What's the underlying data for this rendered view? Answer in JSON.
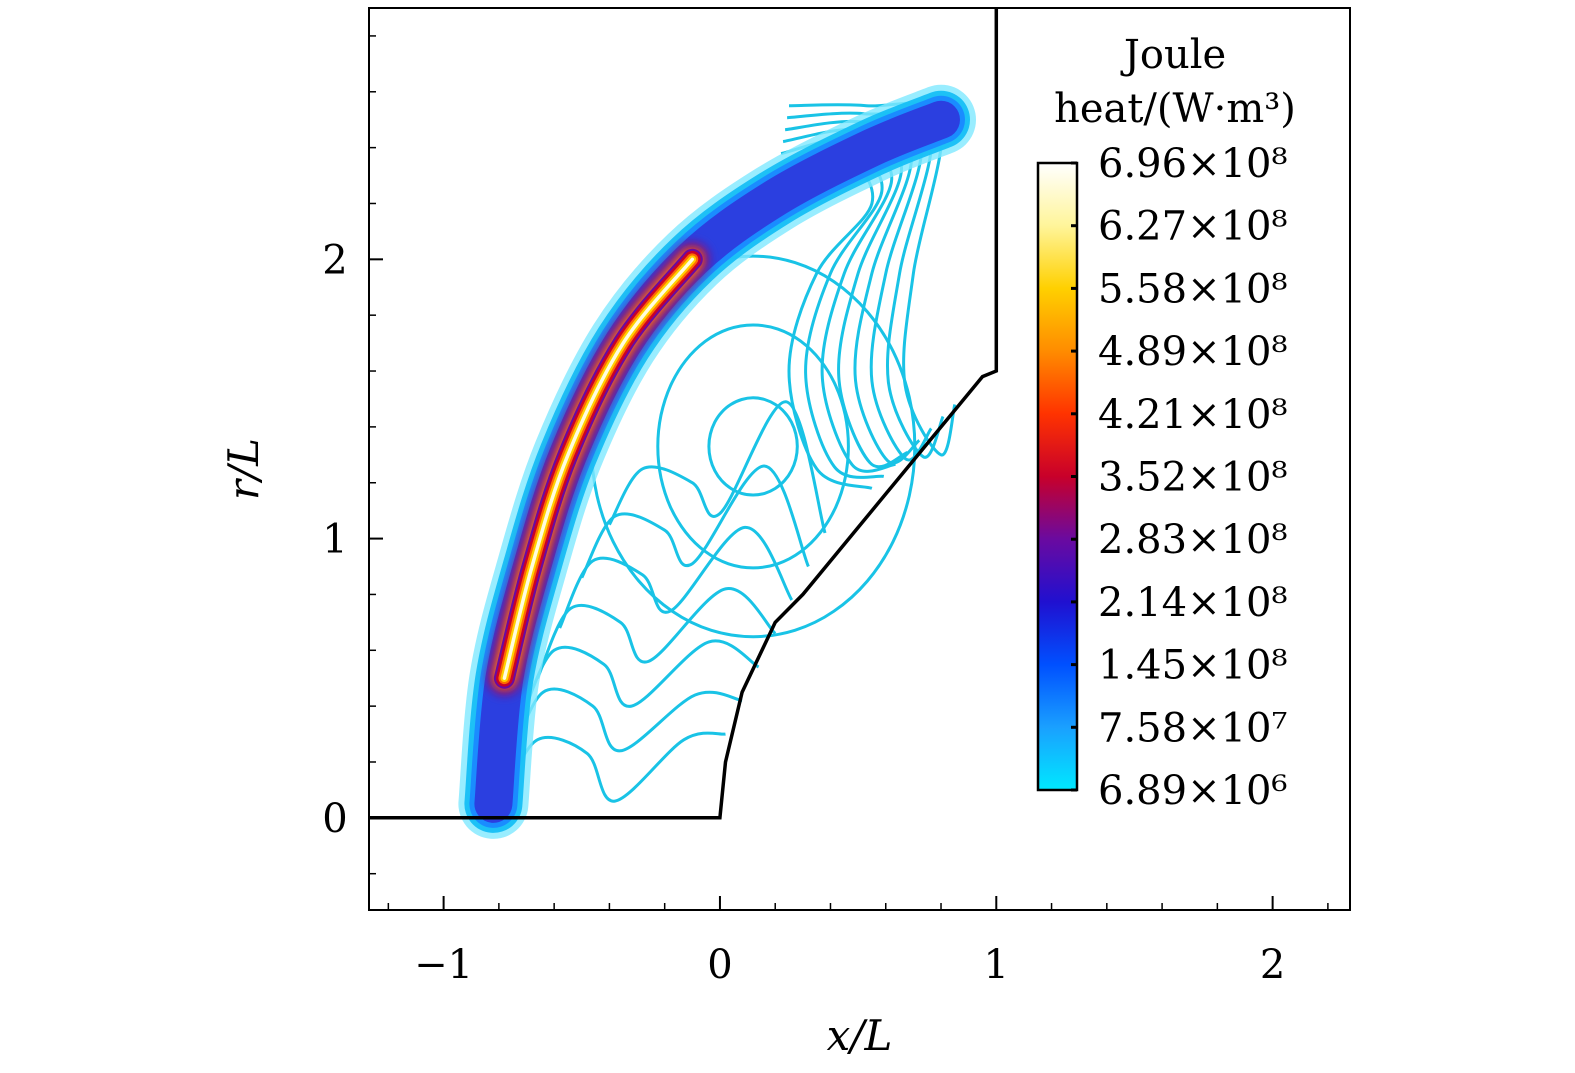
{
  "chart_data": {
    "type": "contour",
    "title": "",
    "xlabel": "x/L",
    "ylabel": "r/L",
    "xlim": [
      -1.27,
      2.28
    ],
    "ylim": [
      -0.33,
      2.9
    ],
    "x_ticks": [
      -1,
      0,
      1,
      2
    ],
    "x_tick_labels": [
      "−1",
      "0",
      "1",
      "2"
    ],
    "y_ticks": [
      0,
      1,
      2
    ],
    "y_tick_labels": [
      "0",
      "1",
      "2"
    ],
    "grid": false,
    "colorbar": {
      "title_line1": "Joule",
      "title_line2": "heat/(W·m³)",
      "placement": "right inside plot",
      "min": 6890000,
      "max": 696000000,
      "labels": [
        "6.96×10⁸",
        "6.27×10⁸",
        "5.58×10⁸",
        "4.89×10⁸",
        "4.21×10⁸",
        "3.52×10⁸",
        "2.83×10⁸",
        "2.14×10⁸",
        "1.45×10⁸",
        "7.58×10⁷",
        "6.89×10⁶"
      ],
      "colors_top_to_bottom": [
        "#ffffff",
        "#fff59a",
        "#ffd000",
        "#ff8c00",
        "#ff3300",
        "#c8002a",
        "#6a0aa0",
        "#2010d0",
        "#0050ff",
        "#1aa0ff",
        "#00e8ff"
      ]
    },
    "body_outline": [
      [
        -1.27,
        0
      ],
      [
        0,
        0
      ],
      [
        0.02,
        0.2
      ],
      [
        0.08,
        0.45
      ],
      [
        0.2,
        0.7
      ],
      [
        0.3,
        0.8
      ],
      [
        0.95,
        1.58
      ],
      [
        1.0,
        1.6
      ],
      [
        1.0,
        2.9
      ]
    ],
    "heat_band_peak": {
      "x": -0.52,
      "r": 1.3,
      "value": 696000000
    },
    "band_centerline": [
      [
        -0.82,
        0.05
      ],
      [
        -0.78,
        0.5
      ],
      [
        -0.68,
        0.9
      ],
      [
        -0.55,
        1.3
      ],
      [
        -0.35,
        1.7
      ],
      [
        -0.1,
        2.0
      ],
      [
        0.2,
        2.22
      ],
      [
        0.55,
        2.4
      ],
      [
        0.8,
        2.5
      ]
    ],
    "contour_levels": 13
  }
}
